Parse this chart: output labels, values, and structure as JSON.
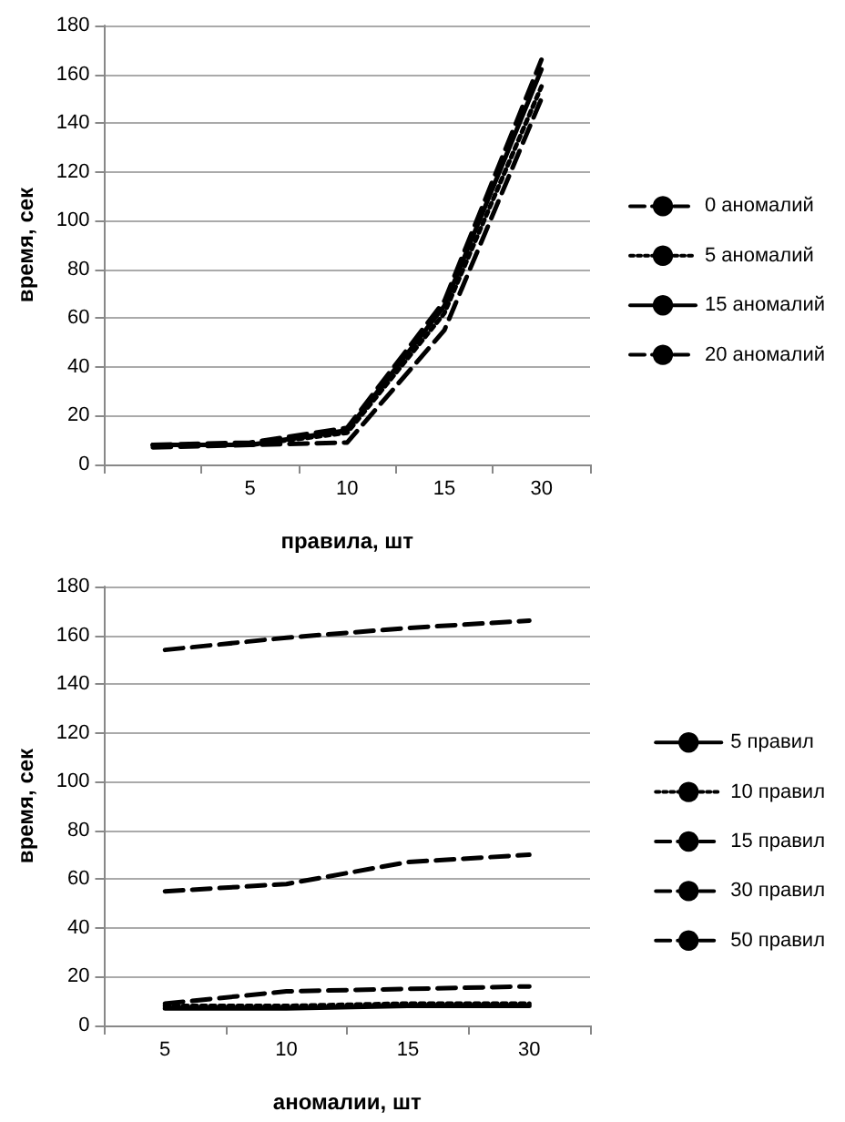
{
  "chart_data": [
    {
      "type": "line",
      "xlabel": "правила, шт",
      "ylabel": "время, сек",
      "categories": [
        null,
        "5",
        "10",
        "15",
        "30"
      ],
      "ylim": [
        0,
        180
      ],
      "yticks": [
        0,
        20,
        40,
        60,
        80,
        100,
        120,
        140,
        160,
        180
      ],
      "grid": "y",
      "legend": "right",
      "series": [
        {
          "name": "0 аномалий",
          "color": "#000000",
          "line_style": "dashed",
          "values": [
            7,
            8,
            9,
            55,
            150
          ]
        },
        {
          "name": "5 аномалий",
          "color": "#000000",
          "line_style": "dotted",
          "values": [
            8,
            8,
            13,
            62,
            155
          ]
        },
        {
          "name": "15 аномалий",
          "color": "#000000",
          "line_style": "solid",
          "values": [
            8,
            8,
            14,
            65,
            162
          ]
        },
        {
          "name": "20 аномалий",
          "color": "#000000",
          "line_style": "dashed",
          "values": [
            8,
            9,
            15,
            67,
            166
          ]
        }
      ]
    },
    {
      "type": "line",
      "xlabel": "аномалии, шт",
      "ylabel": "время, сек",
      "categories": [
        "5",
        "10",
        "15",
        "30"
      ],
      "ylim": [
        0,
        180
      ],
      "yticks": [
        0,
        20,
        40,
        60,
        80,
        100,
        120,
        140,
        160,
        180
      ],
      "grid": "y",
      "legend": "right",
      "series": [
        {
          "name": "5 правил",
          "color": "#000000",
          "line_style": "solid",
          "values": [
            7,
            7,
            8,
            8
          ]
        },
        {
          "name": "10 правил",
          "color": "#000000",
          "line_style": "dotted",
          "values": [
            8,
            8,
            9,
            9
          ]
        },
        {
          "name": "15 правил",
          "color": "#000000",
          "line_style": "dashed",
          "values": [
            9,
            14,
            15,
            16
          ]
        },
        {
          "name": "30 правил",
          "color": "#000000",
          "line_style": "dashed",
          "values": [
            55,
            58,
            67,
            70
          ]
        },
        {
          "name": "50 правил",
          "color": "#000000",
          "line_style": "dashed",
          "values": [
            154,
            159,
            163,
            166
          ]
        }
      ]
    }
  ]
}
